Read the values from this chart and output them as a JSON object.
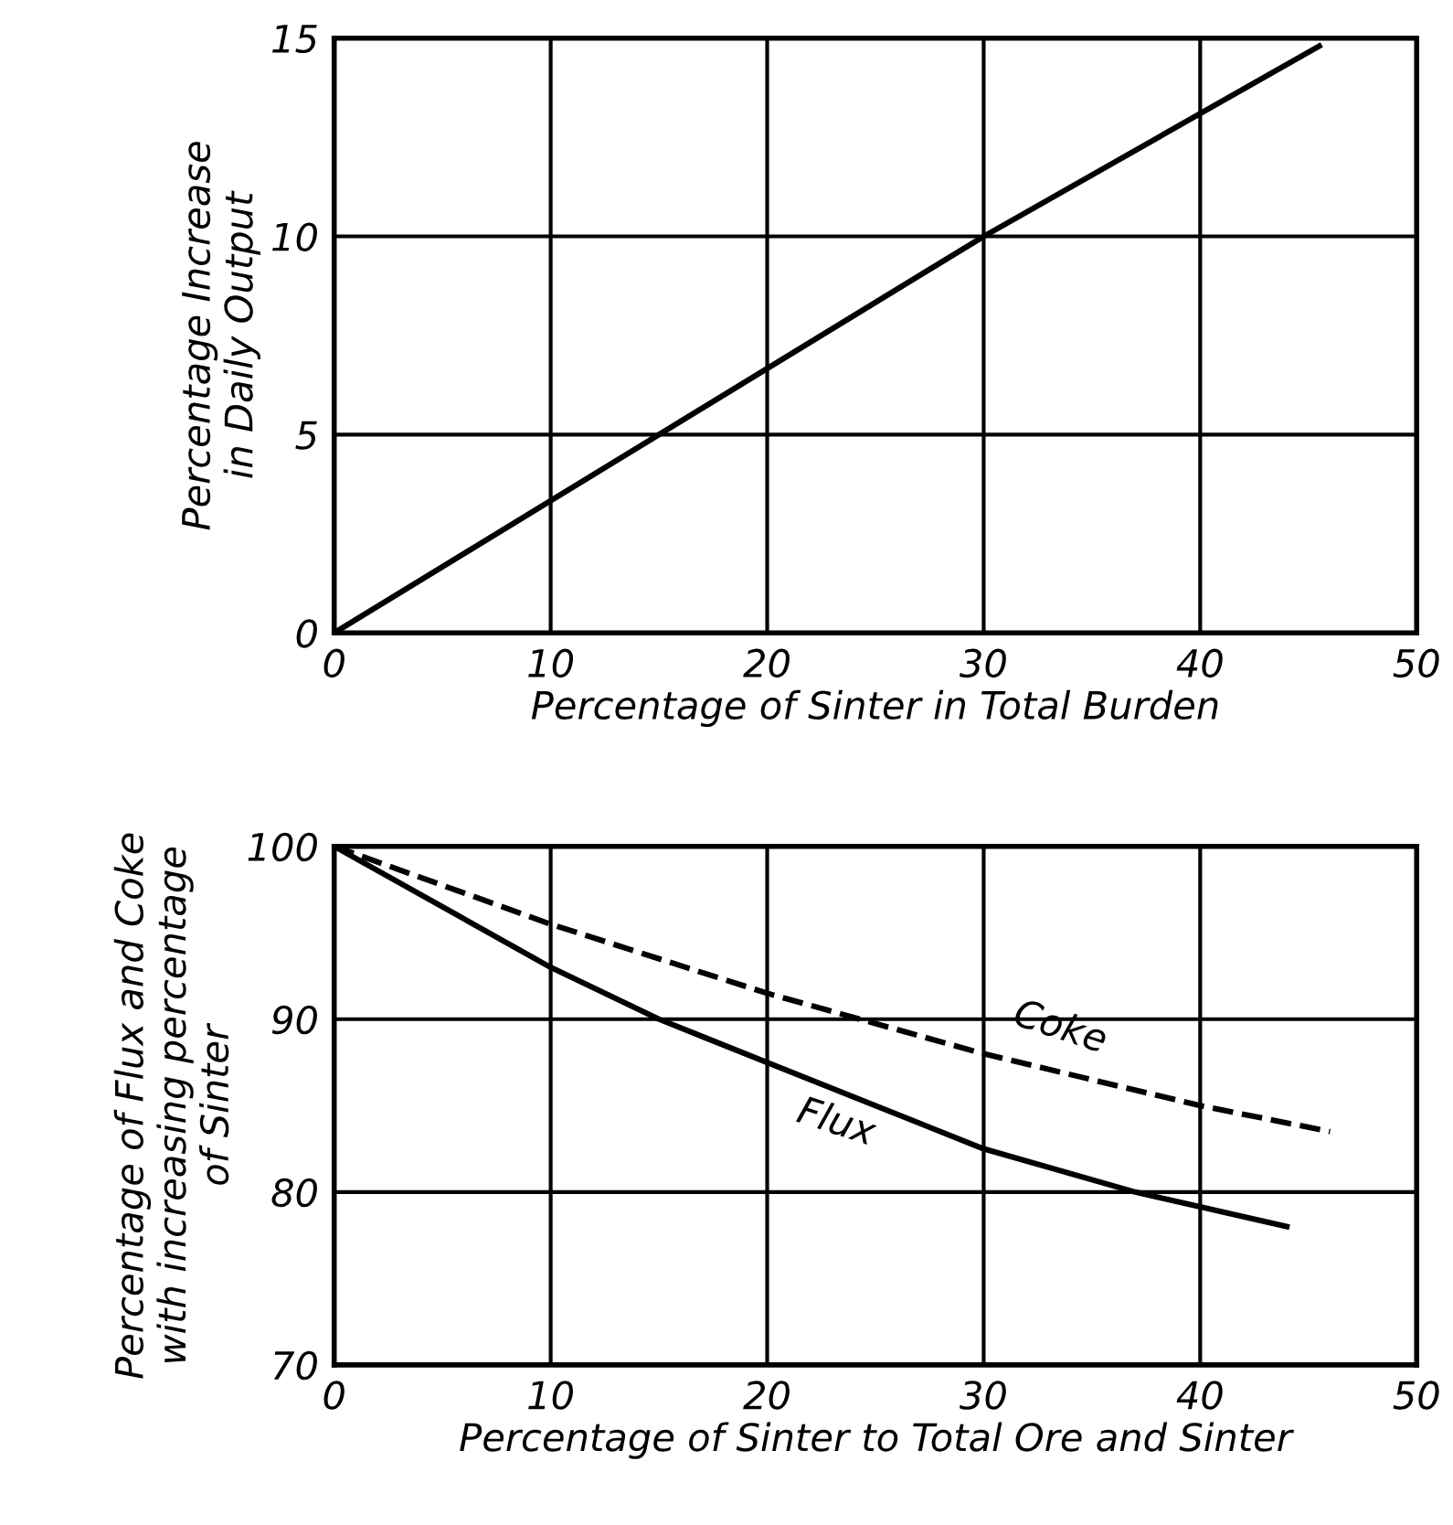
{
  "chart_data": [
    {
      "type": "line",
      "xlabel": "Percentage of Sinter in Total Burden",
      "ylabel": "Percentage Increase\nin Daily Output",
      "series": [
        {
          "color": "#000000",
          "x": [
            0,
            15,
            30,
            45.5
          ],
          "values": [
            0,
            5,
            10,
            14.8
          ]
        }
      ],
      "xlim": [
        0,
        50
      ],
      "ylim": [
        0,
        15
      ],
      "xticks": [
        0,
        10,
        20,
        30,
        40,
        50
      ],
      "yticks": [
        0,
        5,
        10,
        15
      ],
      "grid": true,
      "line_style": "solid"
    },
    {
      "type": "line",
      "xlabel": "Percentage of Sinter to Total Ore and Sinter",
      "ylabel": "Percentage of Flux and Coke\nwith increasing percentage\nof Sinter",
      "series": [
        {
          "name": "Coke",
          "color": "#000000",
          "line_style": "dashed",
          "x": [
            0,
            10,
            20,
            30,
            40,
            46
          ],
          "values": [
            100,
            95.5,
            91.5,
            88,
            85,
            83.5
          ]
        },
        {
          "name": "Flux",
          "color": "#000000",
          "line_style": "solid",
          "x": [
            0,
            10,
            15,
            20,
            30,
            37,
            44
          ],
          "values": [
            100,
            93,
            90,
            87.5,
            82.5,
            80,
            78
          ]
        }
      ],
      "xlim": [
        0,
        50
      ],
      "ylim": [
        70,
        100
      ],
      "xticks": [
        0,
        10,
        20,
        30,
        40,
        50
      ],
      "yticks": [
        70,
        80,
        90,
        100
      ],
      "grid": true
    }
  ]
}
